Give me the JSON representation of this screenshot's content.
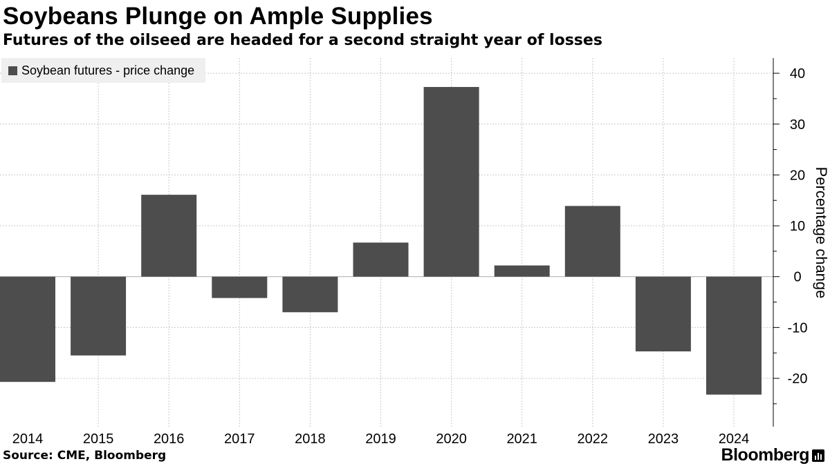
{
  "header": {
    "title": "Soybeans Plunge on Ample Supplies",
    "subtitle": "Futures of the oilseed are headed for a second straight year of losses"
  },
  "legend": {
    "label": "Soybean futures - price change"
  },
  "footer": {
    "source": "Source: CME, Bloomberg",
    "brand": "Bloomberg"
  },
  "colors": {
    "bar": "#4d4d4d",
    "grid": "#c8c8c8",
    "zero": "#aaaaaa",
    "legend_bg": "#efefef"
  },
  "chart_data": {
    "type": "bar",
    "title": "Soybeans Plunge on Ample Supplies",
    "subtitle": "Futures of the oilseed are headed for a second straight year of losses",
    "categories": [
      "2014",
      "2015",
      "2016",
      "2017",
      "2018",
      "2019",
      "2020",
      "2021",
      "2022",
      "2023",
      "2024"
    ],
    "series": [
      {
        "name": "Soybean futures - price change",
        "values": [
          -20.7,
          -15.5,
          16.1,
          -4.2,
          -7.0,
          6.7,
          37.3,
          2.2,
          13.9,
          -14.7,
          -23.2
        ]
      }
    ],
    "xlabel": "",
    "ylabel": "Percentage change",
    "ylim": [
      -29.5,
      43
    ],
    "yticks": [
      40,
      30,
      20,
      10,
      0,
      -10,
      -20
    ],
    "ytick_labels": [
      "40",
      "30",
      "20",
      "10",
      "0",
      "-10",
      "-20"
    ],
    "y_axis_side": "right",
    "grid": true,
    "legend_position": "top-left"
  }
}
